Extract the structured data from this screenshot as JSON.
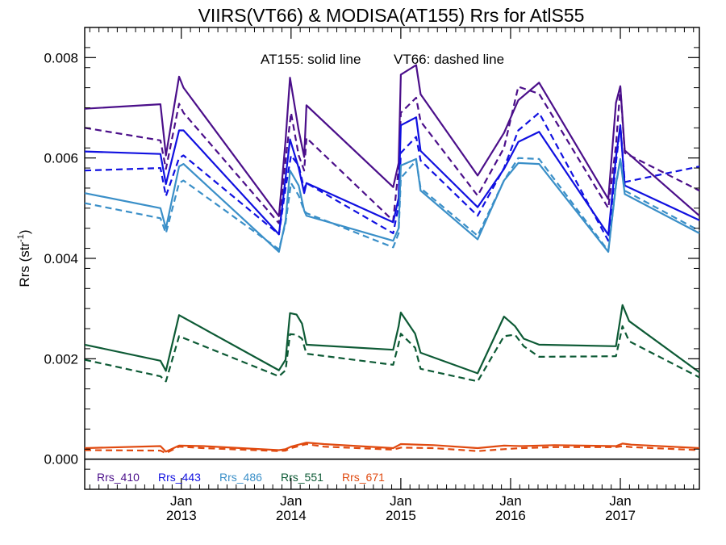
{
  "chart_data": {
    "type": "line",
    "title": "VIIRS(VT66) & MODISA(AT155)  Rrs for AtlS55",
    "annotation_solid": "AT155: solid line",
    "annotation_dashed": "VT66: dashed line",
    "ylabel_main": "Rrs (str",
    "ylabel_sup": "-1",
    "ylabel_end": ")",
    "xlim": [
      2012.12,
      2017.72
    ],
    "ylim": [
      -0.0006,
      0.0086
    ],
    "y_ticks": [
      "0.000",
      "0.002",
      "0.004",
      "0.006",
      "0.008"
    ],
    "y_tick_values": [
      0.0,
      0.002,
      0.004,
      0.006,
      0.008
    ],
    "x_ticks": [
      {
        "value": 2013.0,
        "line1": "Jan",
        "line2": "2013"
      },
      {
        "value": 2014.0,
        "line1": "Jan",
        "line2": "2014"
      },
      {
        "value": 2015.0,
        "line1": "Jan",
        "line2": "2015"
      },
      {
        "value": 2016.0,
        "line1": "Jan",
        "line2": "2016"
      },
      {
        "value": 2017.0,
        "line1": "Jan",
        "line2": "2017"
      }
    ],
    "zero_line": 0.0,
    "series": [
      {
        "name": "Rrs_410",
        "color": "#4b0f8a",
        "solid": {
          "x": [
            2012.12,
            2012.81,
            2012.86,
            2012.98,
            2013.02,
            2013.89,
            2013.95,
            2013.99,
            2014.07,
            2014.12,
            2014.14,
            2014.93,
            2014.98,
            2015.0,
            2015.14,
            2015.18,
            2015.7,
            2015.94,
            2016.07,
            2016.26,
            2016.89,
            2016.96,
            2017.0,
            2017.04,
            2017.72
          ],
          "y": [
            0.00698,
            0.00707,
            0.00605,
            0.00762,
            0.0074,
            0.00484,
            0.00635,
            0.0076,
            0.00655,
            0.00602,
            0.00705,
            0.00542,
            0.0059,
            0.00766,
            0.00785,
            0.00727,
            0.00565,
            0.0065,
            0.00715,
            0.0075,
            0.00518,
            0.0071,
            0.00743,
            0.00615,
            0.00485
          ]
        },
        "dashed": {
          "x": [
            2012.12,
            2012.81,
            2012.86,
            2012.98,
            2013.02,
            2013.89,
            2013.95,
            2014.0,
            2014.07,
            2014.12,
            2014.14,
            2014.93,
            2014.98,
            2015.0,
            2015.14,
            2015.18,
            2015.7,
            2015.94,
            2016.07,
            2016.26,
            2016.89,
            2016.96,
            2017.0,
            2017.04,
            2017.72
          ],
          "y": [
            0.0066,
            0.00635,
            0.00578,
            0.00708,
            0.0069,
            0.0047,
            0.00595,
            0.0069,
            0.00605,
            0.00575,
            0.0064,
            0.00475,
            0.0058,
            0.0069,
            0.0072,
            0.00673,
            0.00525,
            0.0062,
            0.00742,
            0.00728,
            0.005,
            0.00625,
            0.0074,
            0.0061,
            0.00535
          ]
        }
      },
      {
        "name": "Rrs_443",
        "color": "#1010e0",
        "solid": {
          "x": [
            2012.12,
            2012.81,
            2012.86,
            2012.98,
            2013.02,
            2013.89,
            2013.95,
            2013.99,
            2014.07,
            2014.12,
            2014.14,
            2014.93,
            2014.98,
            2015.0,
            2015.14,
            2015.18,
            2015.7,
            2015.94,
            2016.07,
            2016.26,
            2016.89,
            2016.96,
            2017.0,
            2017.04,
            2017.72
          ],
          "y": [
            0.00613,
            0.00608,
            0.00548,
            0.00655,
            0.00655,
            0.00448,
            0.0056,
            0.00637,
            0.0058,
            0.0053,
            0.0055,
            0.00472,
            0.0052,
            0.00665,
            0.00681,
            0.00614,
            0.00502,
            0.00578,
            0.00632,
            0.00652,
            0.00447,
            0.00602,
            0.00665,
            0.00545,
            0.00476
          ]
        },
        "dashed": {
          "x": [
            2012.12,
            2012.81,
            2012.86,
            2012.98,
            2013.02,
            2013.89,
            2013.95,
            2014.0,
            2014.07,
            2014.12,
            2014.14,
            2014.93,
            2014.98,
            2015.0,
            2015.14,
            2015.18,
            2015.7,
            2015.94,
            2016.07,
            2016.26,
            2016.89,
            2016.96,
            2017.0,
            2017.04,
            2017.72
          ],
          "y": [
            0.00575,
            0.0058,
            0.00524,
            0.006,
            0.00605,
            0.00448,
            0.0054,
            0.00605,
            0.00585,
            0.00538,
            0.0055,
            0.0045,
            0.00505,
            0.0061,
            0.00642,
            0.00595,
            0.00485,
            0.0058,
            0.00655,
            0.0069,
            0.00435,
            0.0059,
            0.00665,
            0.00552,
            0.00583
          ]
        }
      },
      {
        "name": "Rrs_486",
        "color": "#3a8fc8",
        "solid": {
          "x": [
            2012.12,
            2012.81,
            2012.86,
            2012.98,
            2013.02,
            2013.89,
            2013.95,
            2013.99,
            2014.07,
            2014.12,
            2014.14,
            2014.93,
            2014.98,
            2015.0,
            2015.14,
            2015.18,
            2015.7,
            2015.94,
            2016.07,
            2016.26,
            2016.89,
            2016.96,
            2017.0,
            2017.04,
            2017.72
          ],
          "y": [
            0.0053,
            0.005,
            0.0046,
            0.00583,
            0.00588,
            0.00413,
            0.00475,
            0.00575,
            0.00545,
            0.00495,
            0.00485,
            0.00435,
            0.0046,
            0.00585,
            0.00598,
            0.00535,
            0.00438,
            0.00555,
            0.0059,
            0.00588,
            0.00413,
            0.00548,
            0.00598,
            0.00528,
            0.0045
          ]
        },
        "dashed": {
          "x": [
            2012.12,
            2012.81,
            2012.86,
            2012.98,
            2013.02,
            2013.89,
            2013.95,
            2014.0,
            2014.07,
            2014.12,
            2014.14,
            2014.93,
            2014.98,
            2015.0,
            2015.14,
            2015.18,
            2015.7,
            2015.94,
            2016.07,
            2016.26,
            2016.89,
            2016.96,
            2017.0,
            2017.04,
            2017.72
          ],
          "y": [
            0.0051,
            0.0048,
            0.0045,
            0.0055,
            0.00555,
            0.00418,
            0.0047,
            0.0055,
            0.00525,
            0.00495,
            0.0049,
            0.00422,
            0.0045,
            0.0056,
            0.00595,
            0.0054,
            0.00445,
            0.00555,
            0.006,
            0.00598,
            0.00415,
            0.00545,
            0.00598,
            0.00535,
            0.00455
          ]
        }
      },
      {
        "name": "Rrs_551",
        "color": "#0d5a35",
        "solid": {
          "x": [
            2012.12,
            2012.81,
            2012.86,
            2012.98,
            2013.89,
            2013.95,
            2013.99,
            2014.05,
            2014.1,
            2014.14,
            2014.93,
            2014.98,
            2015.0,
            2015.13,
            2015.18,
            2015.7,
            2015.94,
            2016.04,
            2016.12,
            2016.26,
            2016.96,
            2017.02,
            2017.08,
            2017.72
          ],
          "y": [
            0.00228,
            0.00196,
            0.00176,
            0.00287,
            0.00177,
            0.00198,
            0.00291,
            0.00288,
            0.0027,
            0.00228,
            0.00218,
            0.00265,
            0.00292,
            0.0025,
            0.00212,
            0.00171,
            0.00284,
            0.00265,
            0.0024,
            0.00228,
            0.00225,
            0.00307,
            0.00275,
            0.00173
          ]
        },
        "dashed": {
          "x": [
            2012.12,
            2012.81,
            2012.86,
            2012.98,
            2013.89,
            2013.95,
            2013.99,
            2014.05,
            2014.1,
            2014.14,
            2014.93,
            2014.98,
            2015.0,
            2015.13,
            2015.18,
            2015.7,
            2015.94,
            2016.04,
            2016.12,
            2016.26,
            2016.96,
            2017.02,
            2017.08,
            2017.72
          ],
          "y": [
            0.00198,
            0.00165,
            0.00155,
            0.00245,
            0.00165,
            0.00177,
            0.00249,
            0.00248,
            0.0024,
            0.0021,
            0.00188,
            0.0023,
            0.0025,
            0.00222,
            0.0018,
            0.00155,
            0.00245,
            0.00248,
            0.00225,
            0.00204,
            0.00205,
            0.00265,
            0.00235,
            0.00163
          ]
        }
      },
      {
        "name": "Rrs_671",
        "color": "#e04a10",
        "solid": {
          "x": [
            2012.12,
            2012.81,
            2012.86,
            2012.98,
            2013.2,
            2013.89,
            2013.95,
            2014.0,
            2014.14,
            2014.3,
            2014.93,
            2015.0,
            2015.3,
            2015.7,
            2015.94,
            2016.1,
            2016.4,
            2016.96,
            2017.02,
            2017.1,
            2017.72
          ],
          "y": [
            0.00022,
            0.00026,
            0.00015,
            0.00027,
            0.00026,
            0.00018,
            0.0002,
            0.00025,
            0.00033,
            0.0003,
            0.00022,
            0.0003,
            0.00028,
            0.00022,
            0.00027,
            0.00026,
            0.00028,
            0.00026,
            0.00031,
            0.00029,
            0.00022
          ]
        },
        "dashed": {
          "x": [
            2012.12,
            2012.81,
            2012.86,
            2012.98,
            2013.2,
            2013.89,
            2013.95,
            2014.0,
            2014.14,
            2014.3,
            2014.93,
            2015.0,
            2015.3,
            2015.7,
            2015.94,
            2016.1,
            2016.4,
            2016.96,
            2017.02,
            2017.1,
            2017.72
          ],
          "y": [
            0.00018,
            0.00017,
            0.00012,
            0.00025,
            0.00022,
            0.00016,
            0.00017,
            0.00022,
            0.0003,
            0.00025,
            0.00019,
            0.00023,
            0.00022,
            0.00016,
            0.0002,
            0.00022,
            0.00024,
            0.00024,
            0.00026,
            0.00024,
            0.00018
          ]
        }
      }
    ]
  }
}
